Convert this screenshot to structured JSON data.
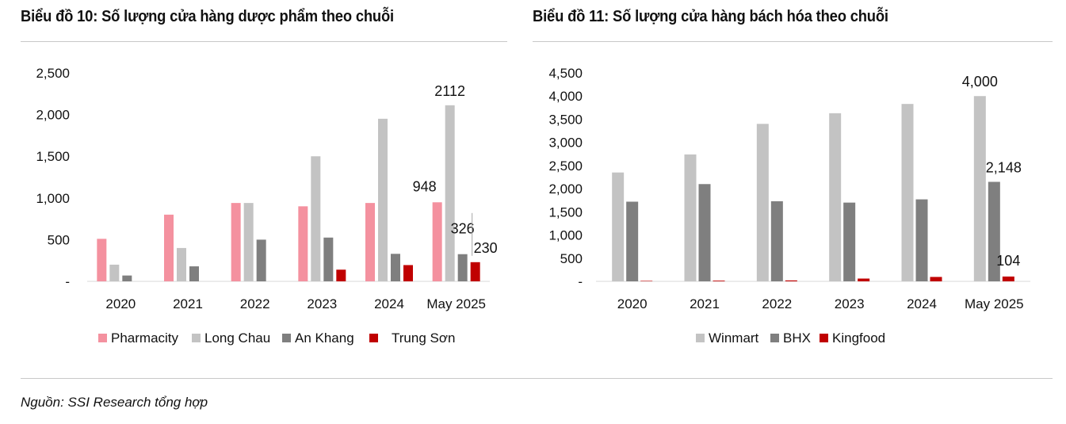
{
  "charts": [
    {
      "title": "Biểu đồ 10: Số lượng cửa hàng dược phẩm theo chuỗi"
    },
    {
      "title": "Biểu đồ 11: Số lượng cửa hàng bách hóa theo chuỗi"
    }
  ],
  "source": "Nguồn: SSI Research tổng hợp",
  "chart_data": [
    {
      "type": "bar",
      "title": "Biểu đồ 10: Số lượng cửa hàng dược phẩm theo chuỗi",
      "categories": [
        "2020",
        "2021",
        "2022",
        "2023",
        "2024",
        "May 2025"
      ],
      "ylim": [
        0,
        2500
      ],
      "yticks": [
        0,
        500,
        1000,
        1500,
        2000,
        2500
      ],
      "ytick_labels": [
        "-",
        "500",
        "1,000",
        "1,500",
        "2,000",
        "2,500"
      ],
      "grid": false,
      "legend_position": "bottom",
      "series": [
        {
          "name": "Pharmacity",
          "color": "#f4919f",
          "values": [
            510,
            800,
            940,
            900,
            940,
            948
          ]
        },
        {
          "name": "Long Chau",
          "color": "#c3c3c3",
          "values": [
            200,
            400,
            940,
            1500,
            1950,
            2112
          ]
        },
        {
          "name": "An Khang",
          "color": "#7f7f7f",
          "values": [
            70,
            180,
            500,
            525,
            330,
            326
          ]
        },
        {
          "name": "Trung Sơn",
          "color": "#c00000",
          "values": [
            0,
            0,
            0,
            140,
            195,
            230
          ]
        }
      ],
      "annotations": [
        {
          "category_index": 5,
          "series_index": 1,
          "text": "2112"
        },
        {
          "category_index": 5,
          "series_index": 0,
          "text": "948"
        },
        {
          "category_index": 5,
          "series_index": 2,
          "text": "326"
        },
        {
          "category_index": 5,
          "series_index": 3,
          "text": "230"
        }
      ]
    },
    {
      "type": "bar",
      "title": "Biểu đồ 11: Số lượng cửa hàng bách hóa theo chuỗi",
      "categories": [
        "2020",
        "2021",
        "2022",
        "2023",
        "2024",
        "May 2025"
      ],
      "ylim": [
        0,
        4500
      ],
      "yticks": [
        0,
        500,
        1000,
        1500,
        2000,
        2500,
        3000,
        3500,
        4000,
        4500
      ],
      "ytick_labels": [
        "-",
        "500",
        "1,000",
        "1,500",
        "2,000",
        "2,500",
        "3,000",
        "3,500",
        "4,000",
        "4,500"
      ],
      "grid": false,
      "legend_position": "bottom",
      "series": [
        {
          "name": "Winmart",
          "color": "#c3c3c3",
          "values": [
            2350,
            2740,
            3400,
            3630,
            3830,
            4000
          ]
        },
        {
          "name": "BHX",
          "color": "#7f7f7f",
          "values": [
            1720,
            2100,
            1730,
            1700,
            1770,
            2148
          ]
        },
        {
          "name": "Kingfood",
          "color": "#c00000",
          "values": [
            10,
            15,
            20,
            60,
            95,
            104
          ]
        }
      ],
      "annotations": [
        {
          "category_index": 5,
          "series_index": 0,
          "text": "4,000"
        },
        {
          "category_index": 5,
          "series_index": 1,
          "text": "2,148"
        },
        {
          "category_index": 5,
          "series_index": 2,
          "text": "104"
        }
      ]
    }
  ]
}
